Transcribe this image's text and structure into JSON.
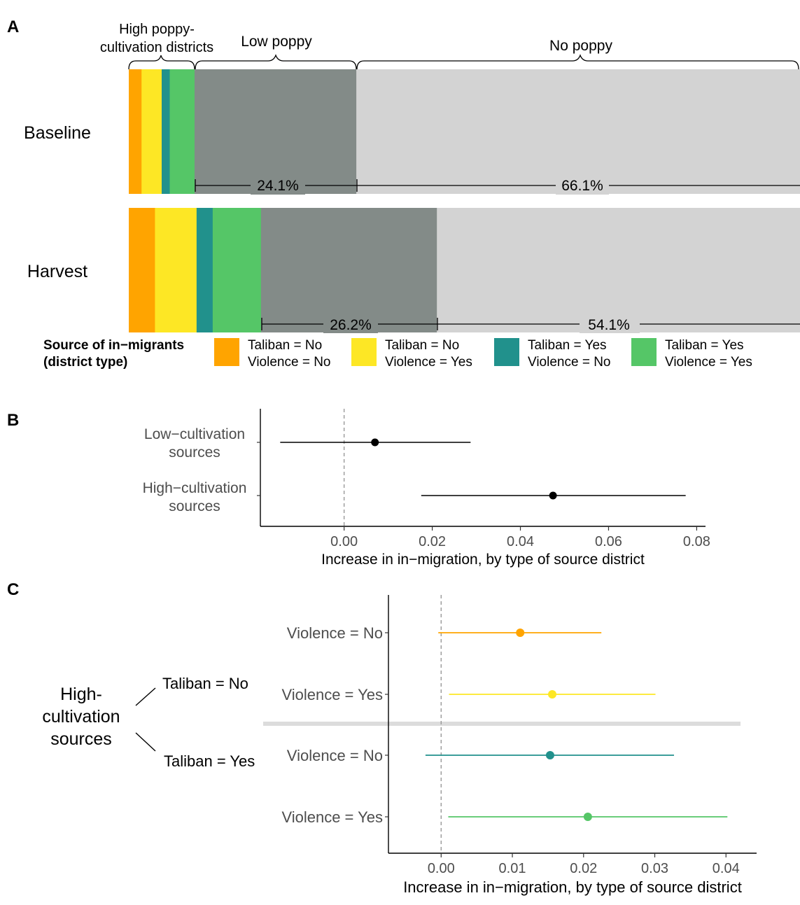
{
  "panels": {
    "a": "A",
    "b": "B",
    "c": "C"
  },
  "colors": {
    "taliban_no_violence_no": "#FFA400",
    "taliban_no_violence_yes": "#FDE725",
    "taliban_yes_violence_no": "#21918C",
    "taliban_yes_violence_yes": "#55C667",
    "low_poppy": "#838B88",
    "no_poppy": "#D3D3D3"
  },
  "chart_data": [
    {
      "type": "bar",
      "orientation": "horizontal-stacked",
      "title": "",
      "bracket_labels": {
        "high": [
          "High poppy-",
          "cultivation districts"
        ],
        "low": "Low poppy",
        "none": "No poppy"
      },
      "categories": [
        "Baseline",
        "Harvest"
      ],
      "series": [
        {
          "name": [
            "Taliban = No",
            "Violence = No"
          ],
          "values": [
            1.9,
            3.9
          ]
        },
        {
          "name": [
            "Taliban = No",
            "Violence = Yes"
          ],
          "values": [
            3.0,
            6.2
          ]
        },
        {
          "name": [
            "Taliban = Yes",
            "Violence = No"
          ],
          "values": [
            1.2,
            2.4
          ]
        },
        {
          "name": [
            "Taliban = Yes",
            "Violence = Yes"
          ],
          "values": [
            3.7,
            7.2
          ]
        },
        {
          "name": "Low poppy",
          "values": [
            24.1,
            26.2
          ]
        },
        {
          "name": "No poppy",
          "values": [
            66.1,
            54.1
          ]
        }
      ],
      "percent_labels": {
        "baseline": [
          "24.1%",
          "66.1%"
        ],
        "harvest": [
          "26.2%",
          "54.1%"
        ]
      },
      "legend": {
        "title": [
          "Source of in−migrants",
          "(district type)"
        ],
        "placement": "bottom"
      }
    },
    {
      "type": "scatter",
      "subtype": "point-range",
      "categories": [
        [
          "Low−cultivation",
          "sources"
        ],
        [
          "High−cultivation",
          "sources"
        ]
      ],
      "series": [
        {
          "estimates": [
            0.007,
            0.0474
          ],
          "lower": [
            -0.0145,
            0.0175
          ],
          "upper": [
            0.0287,
            0.0775
          ]
        }
      ],
      "xlabel": "Increase in in−migration, by type of source district",
      "xticks": [
        "0.00",
        "0.02",
        "0.04",
        "0.06",
        "0.08"
      ],
      "xlim": [
        -0.019,
        0.082
      ],
      "reference_line": 0
    },
    {
      "type": "scatter",
      "subtype": "point-range",
      "categories": [
        "Violence = No",
        "Violence = Yes",
        "Violence = No",
        "Violence = Yes"
      ],
      "series": [
        {
          "estimates": [
            0.0111,
            0.0156,
            0.0153,
            0.0206
          ],
          "lower": [
            -0.0004,
            0.0011,
            -0.0022,
            0.001
          ],
          "upper": [
            0.0225,
            0.0301,
            0.0327,
            0.0402
          ]
        }
      ],
      "group_labels": {
        "main": [
          "High-",
          "cultivation",
          "sources"
        ],
        "groups": [
          "Taliban = No",
          "Taliban = Yes"
        ]
      },
      "xlabel": "Increase in in−migration, by type of source district",
      "xticks": [
        "0.00",
        "0.01",
        "0.02",
        "0.03",
        "0.04"
      ],
      "xlim": [
        -0.0074,
        0.0443
      ],
      "reference_line": 0
    }
  ]
}
